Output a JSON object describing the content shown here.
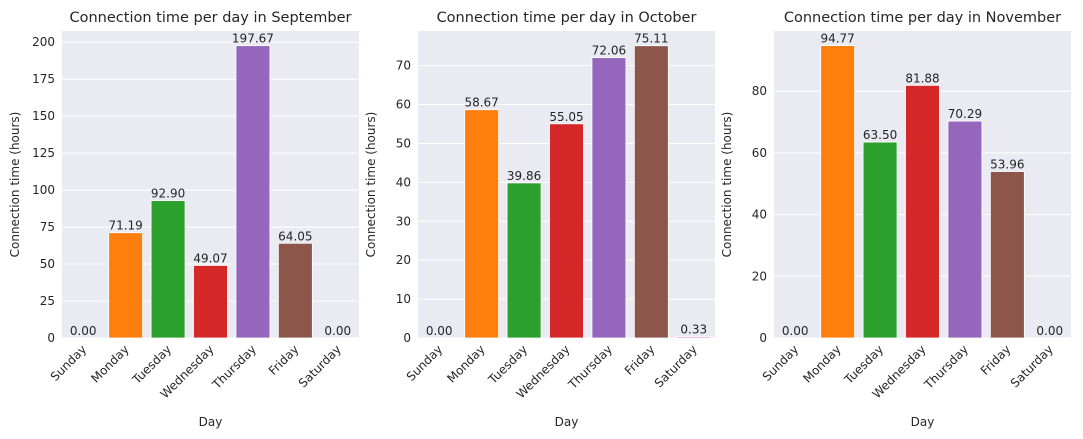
{
  "chart_data": [
    {
      "type": "bar",
      "title": "Connection time per day in September",
      "xlabel": "Day",
      "ylabel": "Connection time (hours)",
      "categories": [
        "Sunday",
        "Monday",
        "Tuesday",
        "Wednesday",
        "Thursday",
        "Friday",
        "Saturday"
      ],
      "values": [
        0.0,
        71.19,
        92.9,
        49.07,
        197.67,
        64.05,
        0.0
      ],
      "data_labels": [
        "0.00",
        "71.19",
        "92.90",
        "49.07",
        "197.67",
        "64.05",
        "0.00"
      ],
      "ylim": [
        0,
        207.6
      ],
      "yticks": [
        0,
        25,
        50,
        75,
        100,
        125,
        150,
        175,
        200
      ],
      "grid": true
    },
    {
      "type": "bar",
      "title": "Connection time per day in October",
      "xlabel": "Day",
      "ylabel": "Connection time (hours)",
      "categories": [
        "Sunday",
        "Monday",
        "Tuesday",
        "Wednesday",
        "Thursday",
        "Friday",
        "Saturday"
      ],
      "values": [
        0.0,
        58.67,
        39.86,
        55.05,
        72.06,
        75.11,
        0.33
      ],
      "data_labels": [
        "0.00",
        "58.67",
        "39.86",
        "55.05",
        "72.06",
        "75.11",
        "0.33"
      ],
      "ylim": [
        0,
        78.9
      ],
      "yticks": [
        0,
        10,
        20,
        30,
        40,
        50,
        60,
        70
      ],
      "grid": true
    },
    {
      "type": "bar",
      "title": "Connection time per day in November",
      "xlabel": "Day",
      "ylabel": "Connection time (hours)",
      "categories": [
        "Sunday",
        "Monday",
        "Tuesday",
        "Wednesday",
        "Thursday",
        "Friday",
        "Saturday"
      ],
      "values": [
        0.0,
        94.77,
        63.5,
        81.88,
        70.29,
        53.96,
        0.0
      ],
      "data_labels": [
        "0.00",
        "94.77",
        "63.50",
        "81.88",
        "70.29",
        "53.96",
        "0.00"
      ],
      "ylim": [
        0,
        99.5
      ],
      "yticks": [
        0,
        20,
        40,
        60,
        80
      ],
      "grid": true
    }
  ],
  "colors": {
    "plot_background": "#eaeaf2",
    "grid": "#ffffff",
    "bars": [
      "#1f77b4",
      "#ff7f0e",
      "#2ca02c",
      "#d62728",
      "#9467bd",
      "#8c564b",
      "#e377c2"
    ]
  }
}
